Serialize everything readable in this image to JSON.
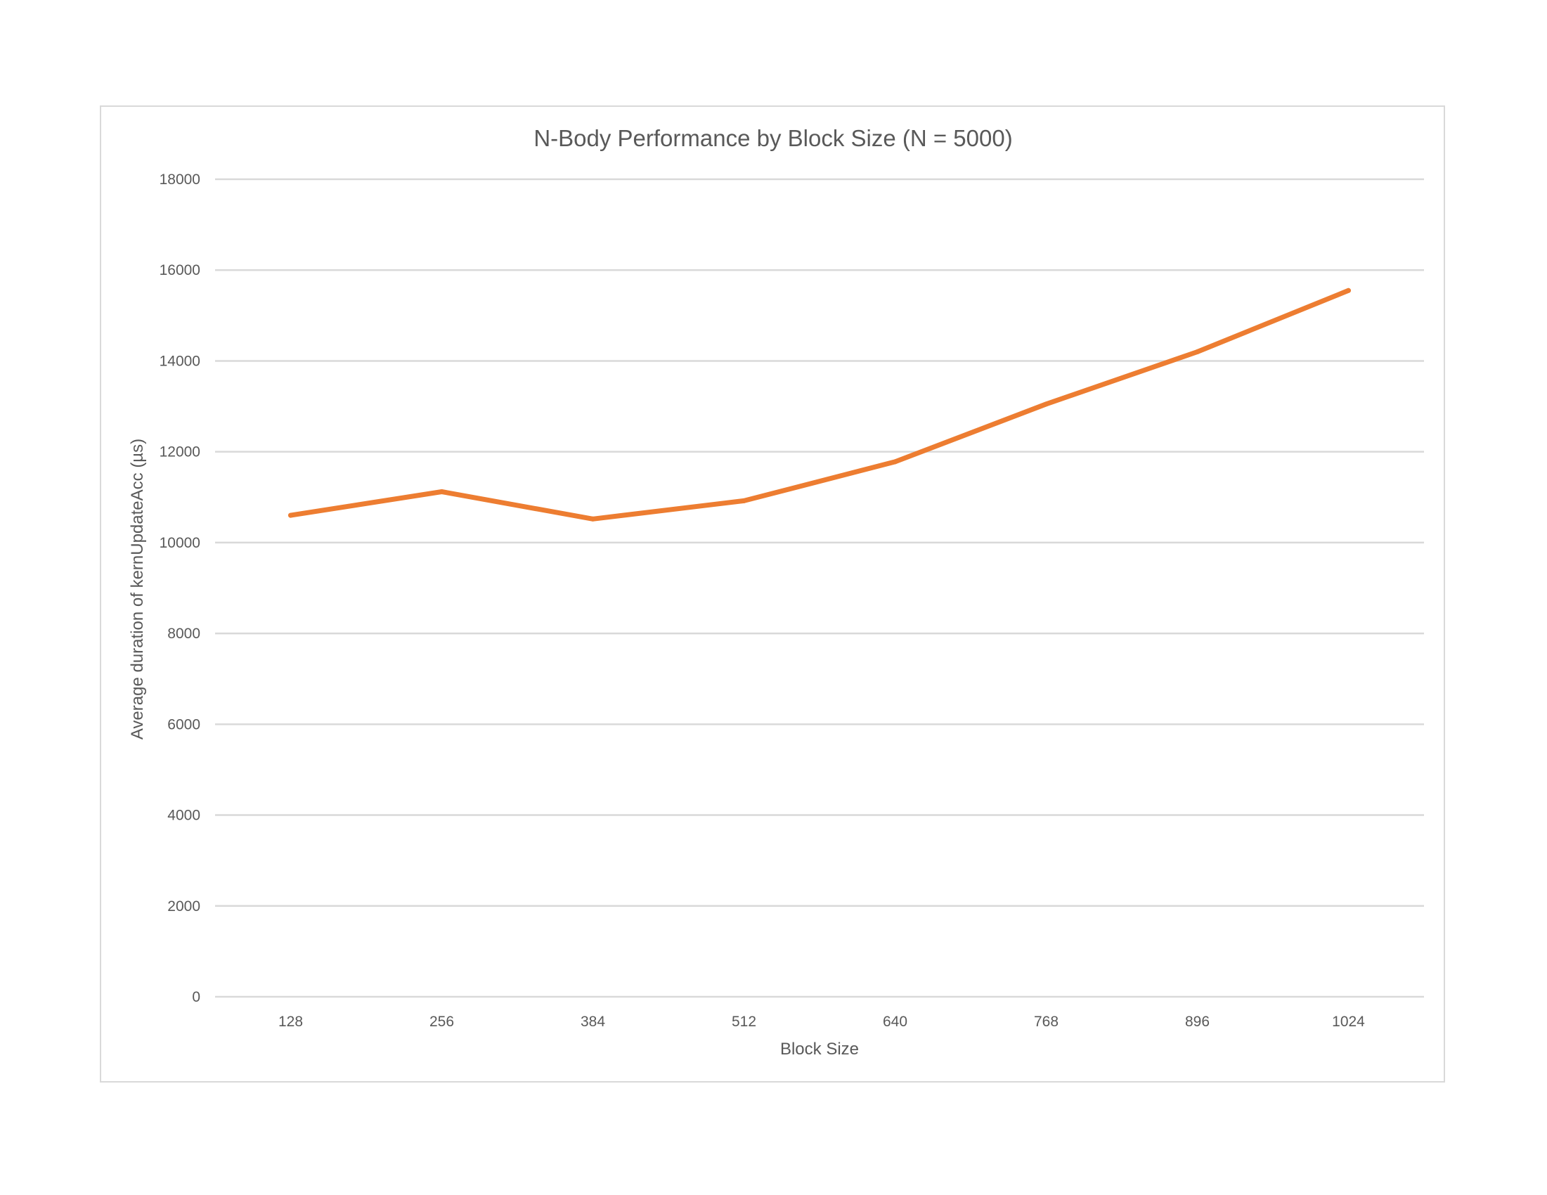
{
  "chart_data": {
    "type": "line",
    "title": "N-Body Performance by Block Size (N = 5000)",
    "xlabel": "Block Size",
    "ylabel": "Average duration of kernUpdateAcc (µs)",
    "categories": [
      "128",
      "256",
      "384",
      "512",
      "640",
      "768",
      "896",
      "1024"
    ],
    "series": [
      {
        "values": [
          10600,
          11120,
          10520,
          10920,
          11780,
          13050,
          14200,
          15550
        ]
      }
    ],
    "ylim": [
      0,
      18000
    ],
    "yticks": [
      0,
      2000,
      4000,
      6000,
      8000,
      10000,
      12000,
      14000,
      16000,
      18000
    ],
    "grid": true,
    "legend": "none",
    "colors": {
      "series": "#ed7d31",
      "grid": "#d9d9d9",
      "text": "#595959",
      "frame": "#d9d9d9"
    }
  }
}
